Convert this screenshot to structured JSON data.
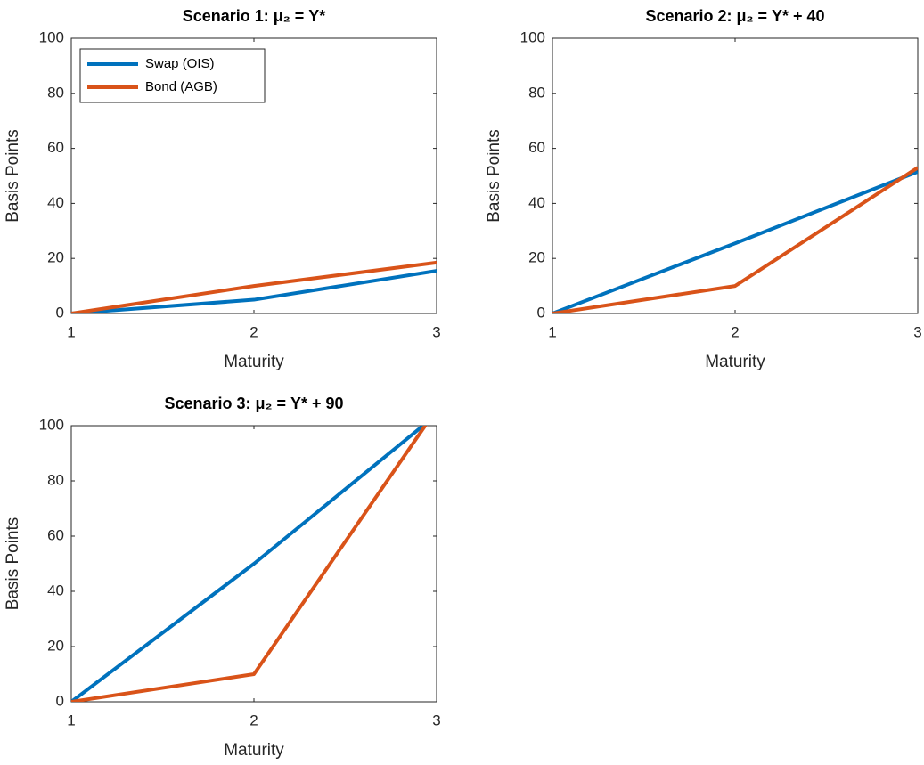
{
  "chart_data": [
    {
      "type": "line",
      "title": "Scenario 1: μ₂ = Y*",
      "x_label": "Maturity",
      "y_label": "Basis Points",
      "x": [
        1,
        2,
        3
      ],
      "xlim": [
        1,
        3
      ],
      "xticks": [
        1,
        2,
        3
      ],
      "ylim": [
        0,
        100
      ],
      "yticks": [
        0,
        20,
        40,
        60,
        80,
        100
      ],
      "legend": "northwest",
      "series": [
        {
          "name": "Swap (OIS)",
          "color": "#0072BD",
          "values": [
            0,
            5,
            15.5
          ]
        },
        {
          "name": "Bond (AGB)",
          "color": "#D95319",
          "values": [
            0,
            10,
            18.5
          ]
        }
      ]
    },
    {
      "type": "line",
      "title": "Scenario 2: μ₂ = Y* + 40",
      "x_label": "Maturity",
      "y_label": "Basis Points",
      "x": [
        1,
        2,
        3
      ],
      "xlim": [
        1,
        3
      ],
      "xticks": [
        1,
        2,
        3
      ],
      "ylim": [
        0,
        100
      ],
      "yticks": [
        0,
        20,
        40,
        60,
        80,
        100
      ],
      "series": [
        {
          "name": "Swap (OIS)",
          "color": "#0072BD",
          "values": [
            0,
            25.5,
            51.5
          ]
        },
        {
          "name": "Bond (AGB)",
          "color": "#D95319",
          "values": [
            0,
            10,
            53
          ]
        }
      ]
    },
    {
      "type": "line",
      "title": "Scenario 3: μ₂ = Y* + 90",
      "x_label": "Maturity",
      "y_label": "Basis Points",
      "x": [
        1,
        2,
        3
      ],
      "xlim": [
        1,
        3
      ],
      "xticks": [
        1,
        2,
        3
      ],
      "ylim": [
        0,
        100
      ],
      "yticks": [
        0,
        20,
        40,
        60,
        80,
        100
      ],
      "series": [
        {
          "name": "Swap (OIS)",
          "color": "#0072BD",
          "values": [
            0,
            50,
            104
          ]
        },
        {
          "name": "Bond (AGB)",
          "color": "#D95319",
          "values": [
            0,
            10,
            106
          ]
        }
      ]
    }
  ]
}
